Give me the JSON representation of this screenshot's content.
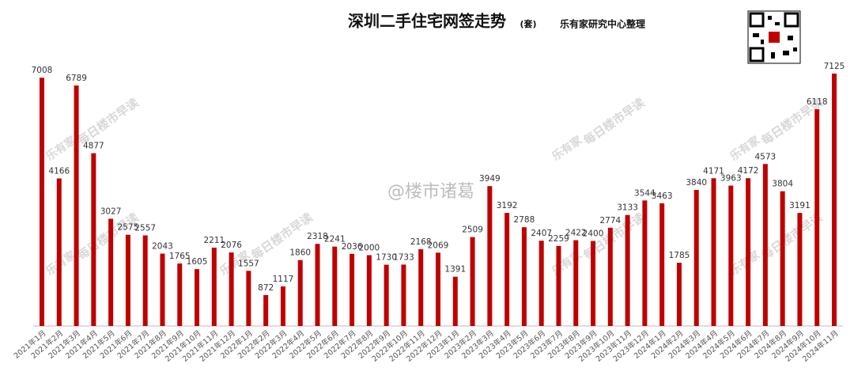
{
  "chart_data": {
    "type": "bar",
    "title": "深圳二手住宅网签走势",
    "unit": "(套)",
    "source": "乐有家研究中心整理",
    "watermarks": [
      "乐有家",
      "每日楼市早读",
      "@楼市诸葛"
    ],
    "color": "#c00000",
    "categories": [
      "2021年1月",
      "2021年2月",
      "2021年3月",
      "2021年4月",
      "2021年5月",
      "2021年6月",
      "2021年7月",
      "2021年8月",
      "2021年9月",
      "2021年10月",
      "2021年11月",
      "2021年12月",
      "2022年1月",
      "2022年2月",
      "2022年3月",
      "2022年4月",
      "2022年5月",
      "2022年6月",
      "2022年7月",
      "2022年8月",
      "2022年9月",
      "2022年10月",
      "2022年11月",
      "2022年12月",
      "2023年1月",
      "2023年2月",
      "2023年3月",
      "2023年4月",
      "2023年5月",
      "2023年6月",
      "2023年7月",
      "2023年8月",
      "2023年9月",
      "2023年10月",
      "2023年11月",
      "2023年12月",
      "2024年1月",
      "2024年2月",
      "2024年3月",
      "2024年4月",
      "2024年5月",
      "2024年6月",
      "2024年7月",
      "2024年8月",
      "2024年9月",
      "2024年10月",
      "2024年11月"
    ],
    "values": [
      7008,
      4166,
      6789,
      4877,
      3027,
      2575,
      2557,
      2043,
      1765,
      1605,
      2211,
      2076,
      1557,
      872,
      1117,
      1860,
      2318,
      2241,
      2036,
      2000,
      1730,
      1733,
      2168,
      2069,
      1391,
      2509,
      3949,
      3192,
      2788,
      2407,
      2259,
      2422,
      2400,
      2774,
      3133,
      3544,
      3463,
      1785,
      3840,
      4171,
      3963,
      4172,
      4573,
      3804,
      3191,
      6118,
      7125
    ]
  }
}
